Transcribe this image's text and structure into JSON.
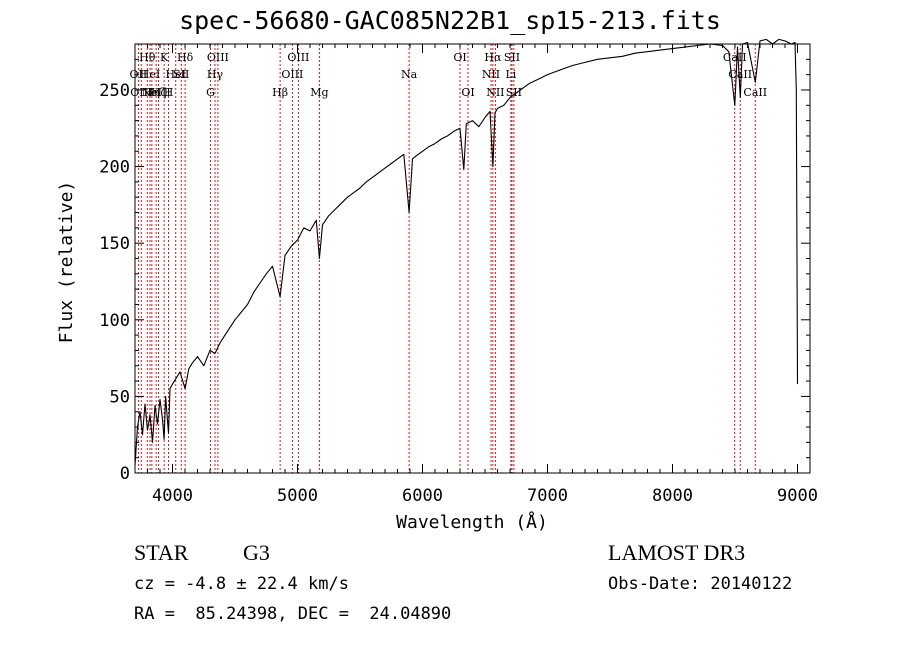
{
  "chart_data": {
    "type": "line",
    "title": "spec-56680-GAC085N22B1_sp15-213.fits",
    "xlabel": "Wavelength (Å)",
    "ylabel": "Flux (relative)",
    "xlim": [
      3700,
      9100
    ],
    "ylim": [
      0,
      280
    ],
    "xticks": [
      {
        "value": 4000,
        "label": "4000"
      },
      {
        "value": 5000,
        "label": "5000"
      },
      {
        "value": 6000,
        "label": "6000"
      },
      {
        "value": 7000,
        "label": "7000"
      },
      {
        "value": 8000,
        "label": "8000"
      },
      {
        "value": 9000,
        "label": "9000"
      }
    ],
    "yticks": [
      {
        "value": 0,
        "label": "0"
      },
      {
        "value": 50,
        "label": "50"
      },
      {
        "value": 100,
        "label": "100"
      },
      {
        "value": 150,
        "label": "150"
      },
      {
        "value": 200,
        "label": "200"
      },
      {
        "value": 250,
        "label": "250"
      }
    ],
    "series": [
      {
        "name": "flux",
        "x": [
          3700,
          3720,
          3740,
          3760,
          3780,
          3800,
          3820,
          3840,
          3860,
          3880,
          3900,
          3920,
          3933,
          3945,
          3968,
          3980,
          4000,
          4030,
          4060,
          4101,
          4130,
          4160,
          4200,
          4250,
          4300,
          4340,
          4380,
          4420,
          4460,
          4500,
          4550,
          4600,
          4650,
          4700,
          4750,
          4800,
          4861,
          4900,
          4950,
          5000,
          5050,
          5100,
          5150,
          5175,
          5200,
          5250,
          5300,
          5350,
          5400,
          5450,
          5500,
          5550,
          5600,
          5650,
          5700,
          5750,
          5800,
          5850,
          5893,
          5920,
          5950,
          6000,
          6050,
          6100,
          6150,
          6200,
          6250,
          6300,
          6330,
          6350,
          6400,
          6450,
          6500,
          6540,
          6563,
          6580,
          6600,
          6650,
          6700,
          6750,
          6800,
          6850,
          6900,
          6950,
          7000,
          7100,
          7200,
          7300,
          7400,
          7500,
          7600,
          7700,
          7800,
          7900,
          8000,
          8100,
          8200,
          8300,
          8400,
          8450,
          8498,
          8520,
          8542,
          8560,
          8600,
          8662,
          8700,
          8750,
          8800,
          8850,
          8900,
          8950,
          8980,
          8990,
          9000
        ],
        "values": [
          5,
          30,
          40,
          25,
          45,
          28,
          38,
          20,
          44,
          32,
          48,
          35,
          22,
          50,
          26,
          55,
          58,
          62,
          66,
          55,
          68,
          72,
          76,
          70,
          80,
          78,
          85,
          90,
          95,
          100,
          105,
          110,
          118,
          124,
          130,
          135,
          115,
          142,
          148,
          152,
          160,
          158,
          165,
          140,
          162,
          168,
          172,
          176,
          180,
          183,
          186,
          190,
          193,
          196,
          199,
          202,
          205,
          208,
          170,
          205,
          207,
          210,
          213,
          215,
          218,
          220,
          223,
          225,
          198,
          228,
          230,
          226,
          232,
          236,
          200,
          235,
          238,
          240,
          245,
          248,
          251,
          254,
          256,
          258,
          260,
          263,
          266,
          268,
          270,
          271,
          272,
          274,
          275,
          276,
          277,
          278,
          279,
          280,
          279,
          275,
          240,
          278,
          245,
          280,
          281,
          255,
          282,
          283,
          280,
          283,
          282,
          280,
          281,
          250,
          58
        ]
      }
    ],
    "lines": [
      {
        "wave": 3727,
        "label": "OII",
        "row": 1
      },
      {
        "wave": 3750,
        "label": "OIII",
        "row": 2
      },
      {
        "wave": 3798,
        "label": "Hθ",
        "row": 0
      },
      {
        "wave": 3820,
        "label": "HeI",
        "row": 1
      },
      {
        "wave": 3835,
        "label": "Hη",
        "row": 2
      },
      {
        "wave": 3869,
        "label": "NeIII",
        "row": 2
      },
      {
        "wave": 3889,
        "label": "Hζ",
        "row": 2
      },
      {
        "wave": 3933,
        "label": "K",
        "row": 0
      },
      {
        "wave": 3968,
        "label": "H",
        "row": 2
      },
      {
        "wave": 4026,
        "label": "HeI",
        "row": 1
      },
      {
        "wave": 4070,
        "label": "SII",
        "row": 1
      },
      {
        "wave": 4101,
        "label": "Hδ",
        "row": 0
      },
      {
        "wave": 4304,
        "label": "G",
        "row": 2
      },
      {
        "wave": 4340,
        "label": "Hγ",
        "row": 1
      },
      {
        "wave": 4363,
        "label": "OIII",
        "row": 0
      },
      {
        "wave": 4861,
        "label": "Hβ",
        "row": 2
      },
      {
        "wave": 4959,
        "label": "OIII",
        "row": 1
      },
      {
        "wave": 5007,
        "label": "OIII",
        "row": 0
      },
      {
        "wave": 5175,
        "label": "Mg",
        "row": 2
      },
      {
        "wave": 5893,
        "label": "Na",
        "row": 1
      },
      {
        "wave": 6300,
        "label": "OI",
        "row": 0
      },
      {
        "wave": 6364,
        "label": "OI",
        "row": 2
      },
      {
        "wave": 6548,
        "label": "NII",
        "row": 1
      },
      {
        "wave": 6563,
        "label": "Hα",
        "row": 0
      },
      {
        "wave": 6583,
        "label": "NII",
        "row": 2
      },
      {
        "wave": 6707,
        "label": "Li",
        "row": 1
      },
      {
        "wave": 6716,
        "label": "SII",
        "row": 0
      },
      {
        "wave": 6731,
        "label": "SII",
        "row": 2
      },
      {
        "wave": 8498,
        "label": "CaII",
        "row": 0
      },
      {
        "wave": 8542,
        "label": "CaII",
        "row": 1
      },
      {
        "wave": 8662,
        "label": "CaII",
        "row": 2
      }
    ]
  },
  "info": {
    "class": "STAR",
    "subclass": "G3",
    "survey": "LAMOST DR3",
    "cz": "cz = -4.8 ± 22.4 km/s",
    "obs_date": "Obs-Date: 20140122",
    "radec": "RA =  85.24398, DEC =  24.04890"
  },
  "colors": {
    "spectrum": "#000000",
    "line_marker": "#cc0000",
    "axis": "#000000",
    "background": "#ffffff"
  }
}
